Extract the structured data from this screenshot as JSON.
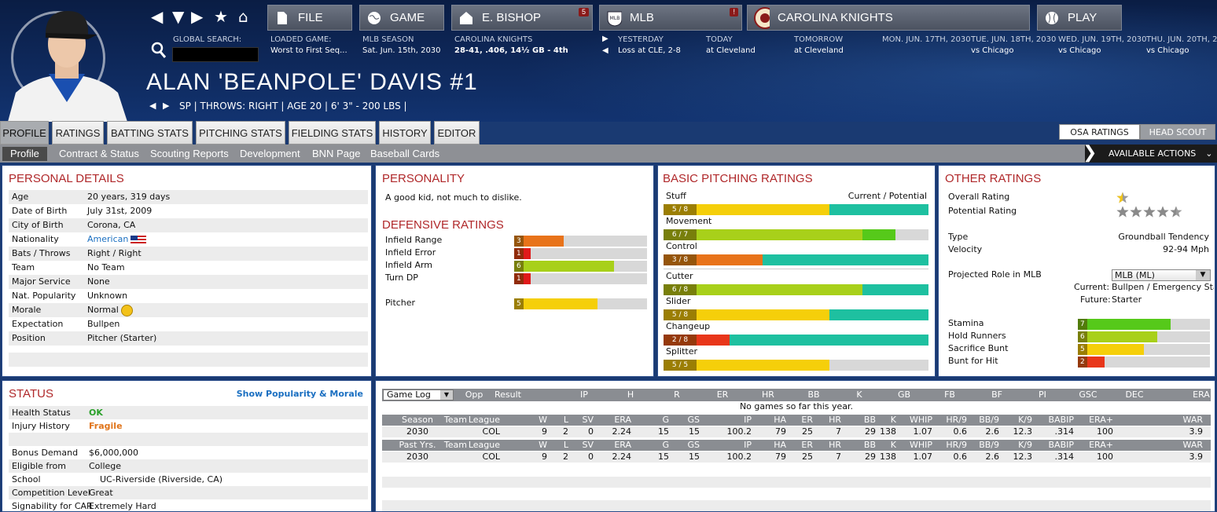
{
  "nav": {
    "arrows": [
      "◀",
      "▼",
      "▶",
      "★",
      "⌂"
    ]
  },
  "menu": {
    "file": "FILE",
    "game": "GAME",
    "manager": "E. BISHOP",
    "manager_badge": "5",
    "league": "MLB",
    "league_badge": "!",
    "team": "CAROLINA KNIGHTS",
    "play": "PLAY"
  },
  "info": {
    "global_search": "GLOBAL SEARCH:",
    "loaded_game_lbl": "LOADED GAME:",
    "loaded_game": "Worst to First Seq...",
    "season_lbl": "MLB SEASON",
    "season": "Sat. Jun. 15th, 2030",
    "team_lbl": "CAROLINA KNIGHTS",
    "team_rec": "28-41, .406, 14½ GB - 4th",
    "yesterday_lbl": "YESTERDAY",
    "yesterday": "Loss at CLE, 2-8",
    "today_lbl": "TODAY",
    "today": "at Cleveland",
    "tomorrow_lbl": "TOMORROW",
    "tomorrow": "at Cleveland",
    "d1_lbl": "MON. JUN. 17TH, 2030",
    "d1": "",
    "d2_lbl": "TUE. JUN. 18TH, 2030",
    "d2": "vs Chicago",
    "d3_lbl": "WED. JUN. 19TH, 2030",
    "d3": "vs Chicago",
    "d4_lbl": "THU. JUN. 20TH, 2",
    "d4": "vs Chicago"
  },
  "player": {
    "name": "ALAN 'BEANPOLE' DAVIS  #1",
    "info": "SP | THROWS: RIGHT  |  AGE 20  |  6' 3\" - 200 LBS  |"
  },
  "tabs": [
    "PROFILE",
    "RATINGS",
    "BATTING STATS",
    "PITCHING STATS",
    "FIELDING STATS",
    "HISTORY",
    "EDITOR"
  ],
  "right_tabs": [
    "OSA RATINGS",
    "HEAD SCOUT"
  ],
  "subtabs": [
    "Profile",
    "Contract & Status",
    "Scouting Reports",
    "Development",
    "BNN Page",
    "Baseball Cards"
  ],
  "available_actions": "AVAILABLE ACTIONS",
  "personal": {
    "title": "PERSONAL DETAILS",
    "rows": [
      [
        "Age",
        "20 years, 319 days"
      ],
      [
        "Date of Birth",
        "July 31st, 2009"
      ],
      [
        "City of Birth",
        "Corona, CA"
      ],
      [
        "Nationality",
        "American"
      ],
      [
        "Bats / Throws",
        "Right / Right"
      ],
      [
        "Team",
        "No Team"
      ],
      [
        "Major Service",
        "None"
      ],
      [
        "Nat. Popularity",
        "Unknown"
      ],
      [
        "Morale",
        "Normal"
      ],
      [
        "Expectation",
        "Bullpen"
      ],
      [
        "Position",
        "Pitcher (Starter)"
      ]
    ]
  },
  "personality": {
    "title": "PERSONALITY",
    "text": "A good kid, not much to dislike."
  },
  "defensive": {
    "title": "DEFENSIVE RATINGS",
    "rows": [
      {
        "label": "Infield Range",
        "value": 3,
        "color": "#e8731a"
      },
      {
        "label": "Infield Error",
        "value": 1,
        "color": "#e01a1a"
      },
      {
        "label": "Infield Arm",
        "value": 6,
        "color": "#a8d01a"
      },
      {
        "label": "Turn DP",
        "value": 1,
        "color": "#e01a1a"
      },
      {
        "label": "Pitcher",
        "value": 5,
        "color": "#f5cf0a"
      }
    ]
  },
  "pitching": {
    "title": "BASIC PITCHING RATINGS",
    "header_right": "Current / Potential",
    "rows": [
      {
        "label": "Stuff",
        "cur": 5,
        "pot": 8,
        "color": "#f5cf0a",
        "pcolor": "#1ec0a0"
      },
      {
        "label": "Movement",
        "cur": 6,
        "pot": 7,
        "color": "#a8d01a",
        "pcolor": "#56c91a"
      },
      {
        "label": "Control",
        "cur": 3,
        "pot": 8,
        "color": "#e8731a",
        "pcolor": "#1ec0a0"
      },
      {
        "label": "Cutter",
        "cur": 6,
        "pot": 8,
        "color": "#a8d01a",
        "pcolor": "#1ec0a0"
      },
      {
        "label": "Slider",
        "cur": 5,
        "pot": 8,
        "color": "#f5cf0a",
        "pcolor": "#1ec0a0"
      },
      {
        "label": "Changeup",
        "cur": 2,
        "pot": 8,
        "color": "#e8361a",
        "pcolor": "#1ec0a0"
      },
      {
        "label": "Splitter",
        "cur": 5,
        "pot": 5,
        "color": "#f5cf0a",
        "pcolor": "#f5cf0a"
      }
    ]
  },
  "other": {
    "title": "OTHER RATINGS",
    "overall_lbl": "Overall Rating",
    "overall": 0.5,
    "potential_lbl": "Potential Rating",
    "potential": 4.5,
    "type_lbl": "Type",
    "type": "Groundball Tendency",
    "velo_lbl": "Velocity",
    "velo": "92-94 Mph",
    "role_lbl": "Projected Role in MLB",
    "role_select": "MLB (ML)",
    "current_lbl": "Current:",
    "current": "Bullpen / Emergency Star",
    "future_lbl": "Future:",
    "future": "Starter",
    "bars": [
      {
        "label": "Stamina",
        "value": 7,
        "color": "#56c91a"
      },
      {
        "label": "Hold Runners",
        "value": 6,
        "color": "#a8d01a"
      },
      {
        "label": "Sacrifice Bunt",
        "value": 5,
        "color": "#f5cf0a"
      },
      {
        "label": "Bunt for Hit",
        "value": 2,
        "color": "#e8361a"
      }
    ]
  },
  "status": {
    "title": "STATUS",
    "link": "Show Popularity & Morale",
    "rows": [
      [
        "Health Status",
        "OK"
      ],
      [
        "Injury History",
        "Fragile"
      ],
      [
        "",
        ""
      ],
      [
        "Bonus Demand",
        "$6,000,000"
      ],
      [
        "Eligible from",
        "College"
      ],
      [
        "School",
        "UC-Riverside (Riverside, CA)"
      ],
      [
        "Competition Level",
        "Great"
      ],
      [
        "Signability for CAR",
        "Extremely Hard"
      ]
    ]
  },
  "gamelog": {
    "select": "Game Log",
    "headers": [
      "Opp",
      "Result",
      "IP",
      "H",
      "R",
      "ER",
      "HR",
      "BB",
      "K",
      "GB",
      "FB",
      "BF",
      "PI",
      "GSC",
      "DEC",
      "ERA"
    ],
    "empty": "No games so far this year."
  },
  "season": {
    "headers": [
      "Season",
      "Team",
      "League",
      "W",
      "L",
      "SV",
      "ERA",
      "G",
      "GS",
      "IP",
      "HA",
      "ER",
      "HR",
      "BB",
      "K",
      "WHIP",
      "HR/9",
      "BB/9",
      "K/9",
      "BABIP",
      "ERA+",
      "WAR"
    ],
    "row": [
      "2030",
      "",
      "COL",
      "9",
      "2",
      "0",
      "2.24",
      "15",
      "15",
      "100.2",
      "79",
      "25",
      "7",
      "29",
      "138",
      "1.07",
      "0.6",
      "2.6",
      "12.3",
      ".314",
      "100",
      "3.9"
    ]
  },
  "past": {
    "headers": [
      "Past Yrs.",
      "Team",
      "League",
      "W",
      "L",
      "SV",
      "ERA",
      "G",
      "GS",
      "IP",
      "HA",
      "ER",
      "HR",
      "BB",
      "K",
      "WHIP",
      "HR/9",
      "BB/9",
      "K/9",
      "BABIP",
      "ERA+",
      "WAR"
    ],
    "row": [
      "2030",
      "",
      "COL",
      "9",
      "2",
      "0",
      "2.24",
      "15",
      "15",
      "100.2",
      "79",
      "25",
      "7",
      "29",
      "138",
      "1.07",
      "0.6",
      "2.6",
      "12.3",
      ".314",
      "100",
      "3.9"
    ]
  }
}
